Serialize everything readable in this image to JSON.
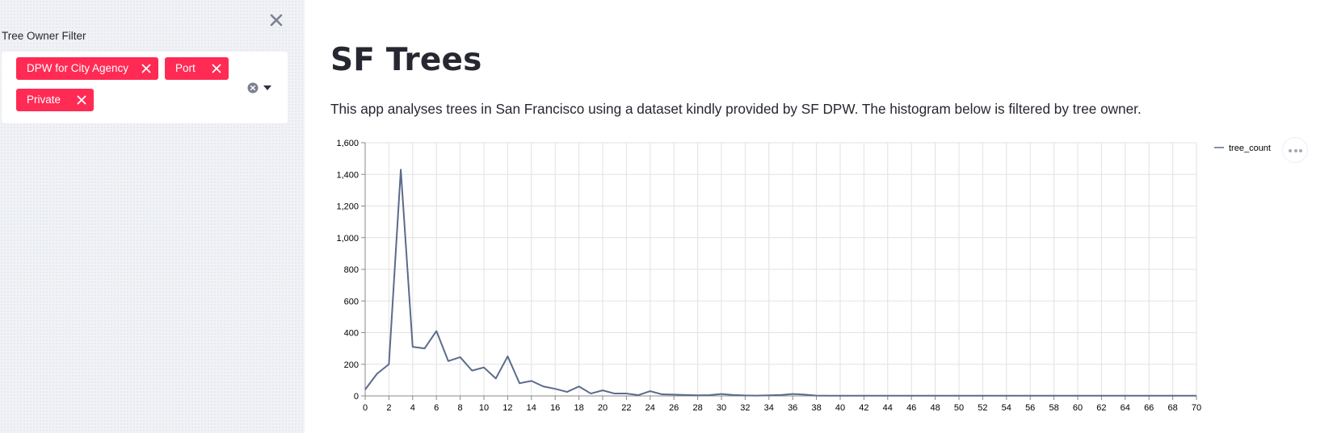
{
  "sidebar": {
    "filter_label": "Tree Owner Filter",
    "selected": [
      {
        "label": "DPW for City Agency"
      },
      {
        "label": "Port"
      },
      {
        "label": "Private"
      }
    ],
    "close_icon": "close-icon",
    "clear_icon": "clear-all-icon",
    "dropdown_icon": "chevron-down-icon"
  },
  "main": {
    "title": "SF Trees",
    "description": "This app analyses trees in San Francisco using a dataset kindly provided by SF DPW. The histogram below is filtered by tree owner."
  },
  "colors": {
    "accent": "#ff2b55",
    "line": "#5b6b8c",
    "sidebar_bg": "#f0f2f6"
  },
  "chart_data": {
    "type": "line",
    "xlabel": "",
    "ylabel": "",
    "xlim": [
      0,
      70
    ],
    "ylim": [
      0,
      1600
    ],
    "x_ticks": [
      0,
      2,
      4,
      6,
      8,
      10,
      12,
      14,
      16,
      18,
      20,
      22,
      24,
      26,
      28,
      30,
      32,
      34,
      36,
      38,
      40,
      42,
      44,
      46,
      48,
      50,
      52,
      54,
      56,
      58,
      60,
      62,
      64,
      66,
      68,
      70
    ],
    "y_ticks": [
      0,
      200,
      400,
      600,
      800,
      1000,
      1200,
      1400,
      1600
    ],
    "y_tick_labels": [
      "0",
      "200",
      "400",
      "600",
      "800",
      "1,000",
      "1,200",
      "1,400",
      "1,600"
    ],
    "grid": true,
    "legend": "top-right",
    "series": [
      {
        "name": "tree_count",
        "x": [
          0,
          1,
          2,
          3,
          4,
          5,
          6,
          7,
          8,
          9,
          10,
          11,
          12,
          13,
          14,
          15,
          16,
          17,
          18,
          19,
          20,
          21,
          22,
          23,
          24,
          25,
          26,
          27,
          28,
          29,
          30,
          31,
          32,
          33,
          34,
          35,
          36,
          37,
          38,
          39,
          40,
          41,
          42,
          43,
          44,
          45,
          46,
          47,
          48,
          49,
          50,
          51,
          52,
          53,
          54,
          55,
          56,
          57,
          58,
          59,
          60,
          61,
          62,
          63,
          64,
          65,
          66,
          67,
          68,
          69,
          70
        ],
        "values": [
          40,
          140,
          200,
          1430,
          310,
          300,
          410,
          220,
          245,
          160,
          180,
          110,
          250,
          80,
          95,
          60,
          45,
          25,
          60,
          15,
          35,
          15,
          15,
          5,
          30,
          10,
          8,
          6,
          4,
          5,
          12,
          6,
          3,
          2,
          4,
          6,
          12,
          8,
          2,
          1,
          1,
          1,
          1,
          1,
          1,
          1,
          1,
          1,
          1,
          1,
          1,
          1,
          1,
          1,
          1,
          1,
          1,
          1,
          1,
          1,
          1,
          1,
          1,
          1,
          1,
          1,
          1,
          1,
          1,
          1,
          1
        ]
      }
    ]
  }
}
